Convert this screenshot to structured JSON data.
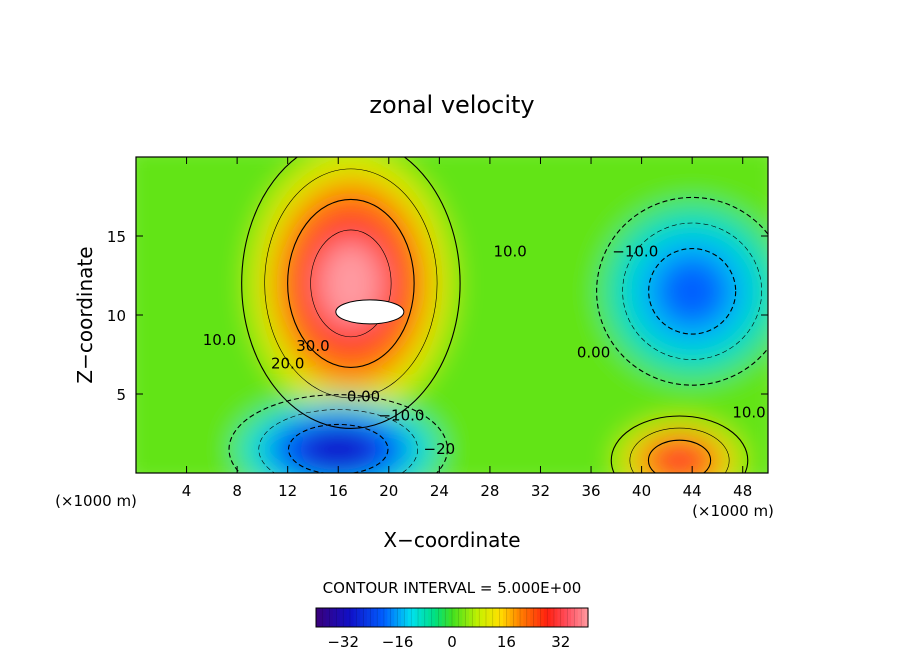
{
  "chart_data": {
    "type": "heatmap",
    "title": "zonal velocity",
    "xlabel": "X−coordinate",
    "ylabel": "Z−coordinate",
    "x_unit_left": "(×1000 m)",
    "x_unit_right": "(×1000 m)",
    "xlim": [
      0,
      50
    ],
    "ylim": [
      0,
      20
    ],
    "xticks": [
      4,
      8,
      12,
      16,
      20,
      24,
      28,
      32,
      36,
      40,
      44,
      48
    ],
    "yticks": [
      5,
      10,
      15
    ],
    "contour_interval_text": "CONTOUR INTERVAL = 5.000E+00",
    "colorbar": {
      "min": -40,
      "max": 40,
      "ticks": [
        "−32",
        "−16",
        "0",
        "16",
        "32"
      ]
    },
    "features": [
      {
        "kind": "max",
        "x": 17,
        "y": 12,
        "value": 40
      },
      {
        "kind": "min",
        "x": 16,
        "y": 1.5,
        "value": -30
      },
      {
        "kind": "max",
        "x": 43,
        "y": 0.8,
        "value": 30
      },
      {
        "kind": "min",
        "x": 44,
        "y": 11.5,
        "value": -20
      }
    ],
    "contour_labels": [
      {
        "text": "30.0",
        "x": 14,
        "y": 8
      },
      {
        "text": "20.0",
        "x": 12,
        "y": 6.9
      },
      {
        "text": "10.0",
        "x": 6.6,
        "y": 8.4
      },
      {
        "text": "0.00",
        "x": 18,
        "y": 4.8
      },
      {
        "text": "−10.0",
        "x": 21,
        "y": 3.6
      },
      {
        "text": "−20",
        "x": 24,
        "y": 1.5
      },
      {
        "text": "10.0",
        "x": 29.6,
        "y": 14
      },
      {
        "text": "−10.0",
        "x": 39.5,
        "y": 14
      },
      {
        "text": "0.00",
        "x": 36.2,
        "y": 7.6
      },
      {
        "text": "10.0",
        "x": 48.5,
        "y": 3.8
      }
    ]
  }
}
